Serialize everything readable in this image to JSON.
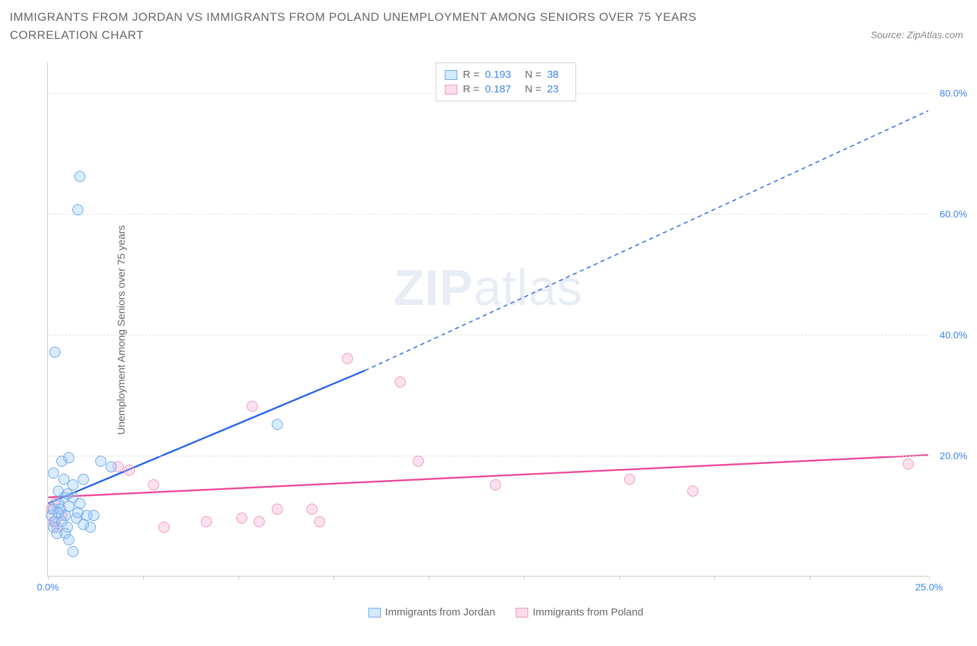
{
  "title": "IMMIGRANTS FROM JORDAN VS IMMIGRANTS FROM POLAND UNEMPLOYMENT AMONG SENIORS OVER 75 YEARS CORRELATION CHART",
  "source": "Source: ZipAtlas.com",
  "ylabel": "Unemployment Among Seniors over 75 years",
  "watermark_a": "ZIP",
  "watermark_b": "atlas",
  "chart": {
    "type": "scatter",
    "xlim": [
      0,
      25
    ],
    "ylim": [
      0,
      85
    ],
    "xtick_positions": [
      0,
      2.7,
      5.4,
      8.1,
      10.8,
      13.5,
      16.2,
      18.9,
      21.6,
      25
    ],
    "xtick_labels": {
      "0": "0.0%",
      "25": "25.0%"
    },
    "ytick_positions": [
      20,
      40,
      60,
      80
    ],
    "ytick_labels": [
      "20.0%",
      "40.0%",
      "60.0%",
      "80.0%"
    ],
    "grid_color": "#e0e0e0",
    "axis_color": "#cccccc",
    "background_color": "#ffffff",
    "tick_label_color": "#3b82f6",
    "marker_size": 16
  },
  "series": {
    "jordan": {
      "label": "Immigrants from Jordan",
      "fill_color": "rgba(147,197,253,0.35)",
      "stroke_color": "#6ea8e8",
      "trend_color": "#2563eb",
      "trend_width": 2.5,
      "R": "0.193",
      "N": "38",
      "trend": {
        "x1": 0,
        "y1": 12,
        "x2_solid": 9,
        "y2_solid": 34,
        "x2_dash": 25,
        "y2_dash": 77
      },
      "points": [
        [
          0.1,
          10
        ],
        [
          0.15,
          11
        ],
        [
          0.2,
          9
        ],
        [
          0.15,
          8
        ],
        [
          0.3,
          12
        ],
        [
          0.25,
          7
        ],
        [
          0.35,
          11
        ],
        [
          0.4,
          9
        ],
        [
          0.45,
          13
        ],
        [
          0.5,
          10
        ],
        [
          0.55,
          8
        ],
        [
          0.6,
          11.5
        ],
        [
          0.3,
          14
        ],
        [
          0.7,
          15
        ],
        [
          0.8,
          9.5
        ],
        [
          0.9,
          12
        ],
        [
          1.0,
          16
        ],
        [
          1.1,
          10
        ],
        [
          1.2,
          8
        ],
        [
          0.4,
          19
        ],
        [
          0.6,
          19.5
        ],
        [
          1.5,
          19
        ],
        [
          0.15,
          17
        ],
        [
          1.8,
          18
        ],
        [
          0.85,
          10.5
        ],
        [
          0.5,
          7
        ],
        [
          0.7,
          13
        ],
        [
          0.3,
          10.5
        ],
        [
          1.3,
          10
        ],
        [
          1.0,
          8.5
        ],
        [
          0.55,
          13.5
        ],
        [
          0.7,
          4
        ],
        [
          0.45,
          16
        ],
        [
          0.2,
          37
        ],
        [
          0.85,
          60.5
        ],
        [
          0.9,
          66
        ],
        [
          6.5,
          25
        ],
        [
          0.6,
          6
        ]
      ]
    },
    "poland": {
      "label": "Immigrants from Poland",
      "fill_color": "rgba(249,168,212,0.35)",
      "stroke_color": "#ec99b8",
      "trend_color": "#ec4899",
      "trend_width": 2.5,
      "R": "0.187",
      "N": "23",
      "trend": {
        "x1": 0,
        "y1": 13,
        "x2_solid": 25,
        "y2_solid": 20
      },
      "points": [
        [
          0.1,
          11
        ],
        [
          0.15,
          9
        ],
        [
          0.2,
          12
        ],
        [
          0.25,
          8
        ],
        [
          0.4,
          10
        ],
        [
          2.0,
          18
        ],
        [
          2.3,
          17.5
        ],
        [
          3.0,
          15
        ],
        [
          3.3,
          8
        ],
        [
          4.5,
          9
        ],
        [
          5.5,
          9.5
        ],
        [
          5.8,
          28
        ],
        [
          6.0,
          9
        ],
        [
          6.5,
          11
        ],
        [
          7.5,
          11
        ],
        [
          7.7,
          9
        ],
        [
          8.5,
          36
        ],
        [
          10.5,
          19
        ],
        [
          10.0,
          32
        ],
        [
          12.7,
          15
        ],
        [
          16.5,
          16
        ],
        [
          18.3,
          14
        ],
        [
          24.4,
          18.5
        ]
      ]
    }
  },
  "legend_stats": {
    "r_label": "R =",
    "n_label": "N ="
  }
}
